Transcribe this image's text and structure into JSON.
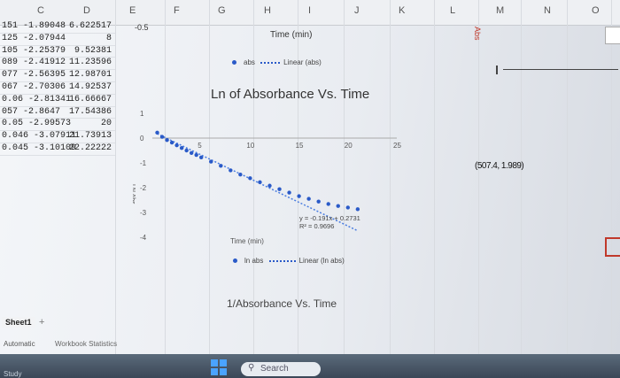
{
  "columns": [
    "C",
    "D",
    "E",
    "F",
    "G",
    "H",
    "I",
    "J",
    "K",
    "L",
    "M",
    "N",
    "O"
  ],
  "rows": [
    {
      "c": "151  -1.89048",
      "d": "6.622517"
    },
    {
      "c": "125  -2.07944",
      "d": "8"
    },
    {
      "c": "105  -2.25379",
      "d": "9.52381"
    },
    {
      "c": "089  -2.41912",
      "d": "11.23596"
    },
    {
      "c": "077  -2.56395",
      "d": "12.98701"
    },
    {
      "c": "067  -2.70306",
      "d": "14.92537"
    },
    {
      "c": "0.06  -2.81341",
      "d": "16.66667"
    },
    {
      "c": "057  -2.8647",
      "d": "17.54386"
    },
    {
      "c": "0.05  -2.99573",
      "d": "20"
    },
    {
      "c": "0.046  -3.07911",
      "d": "21.73913"
    },
    {
      "c": "0.045  -3.10109",
      "d": "22.22222"
    }
  ],
  "e_cell": "-0.5",
  "top_chart": {
    "x_title": "Time (min)",
    "legend_series": "abs",
    "legend_trend": "Linear (abs)"
  },
  "ln_chart": {
    "title": "Ln of Absorbance Vs. Time",
    "y_title": "LN Abs",
    "x_title": "Time (min)",
    "equation": "y = -0.191x + 0.2731",
    "r2": "R² = 0.9696",
    "legend_series": "ln abs",
    "legend_trend": "Linear (ln abs)"
  },
  "chart_data": {
    "type": "scatter",
    "title": "Ln of Absorbance Vs. Time",
    "xlabel": "Time (min)",
    "ylabel": "LN Abs",
    "xlim": [
      0,
      25
    ],
    "ylim": [
      -4,
      1
    ],
    "x_ticks": [
      "5",
      "10",
      "15",
      "20",
      "25"
    ],
    "y_ticks": [
      "1",
      "0",
      "-1",
      "-2",
      "-3",
      "-4"
    ],
    "series": [
      {
        "name": "ln abs",
        "x": [
          0.5,
          1,
          1.5,
          2,
          2.5,
          3,
          3.5,
          4,
          4.5,
          5,
          6,
          7,
          8,
          9,
          10,
          11,
          12,
          13,
          14,
          15,
          16,
          17,
          18,
          19,
          20,
          21
        ],
        "y": [
          0.22,
          0.05,
          -0.08,
          -0.18,
          -0.29,
          -0.4,
          -0.5,
          -0.6,
          -0.68,
          -0.78,
          -0.95,
          -1.12,
          -1.3,
          -1.47,
          -1.62,
          -1.78,
          -1.92,
          -2.06,
          -2.2,
          -2.34,
          -2.45,
          -2.56,
          -2.66,
          -2.74,
          -2.8,
          -2.87
        ]
      }
    ],
    "trendline": {
      "name": "Linear (ln abs)",
      "slope": -0.191,
      "intercept": 0.2731
    }
  },
  "inv_chart": {
    "title": "1/Absorbance Vs. Time"
  },
  "right_chart": {
    "axis_label": "Abs",
    "coordinate": "(507.4, 1.989)"
  },
  "sheet": {
    "tab": "Sheet1",
    "add": "+"
  },
  "status": {
    "left": "Automatic",
    "right": "Workbook Statistics"
  },
  "taskbar": {
    "left": "Study",
    "search": "Search"
  },
  "colors": {
    "accent": "#2a5ac8",
    "trend": "#4a7de0"
  },
  "icons": {
    "search": "search-icon",
    "windows": "windows-start-icon"
  }
}
